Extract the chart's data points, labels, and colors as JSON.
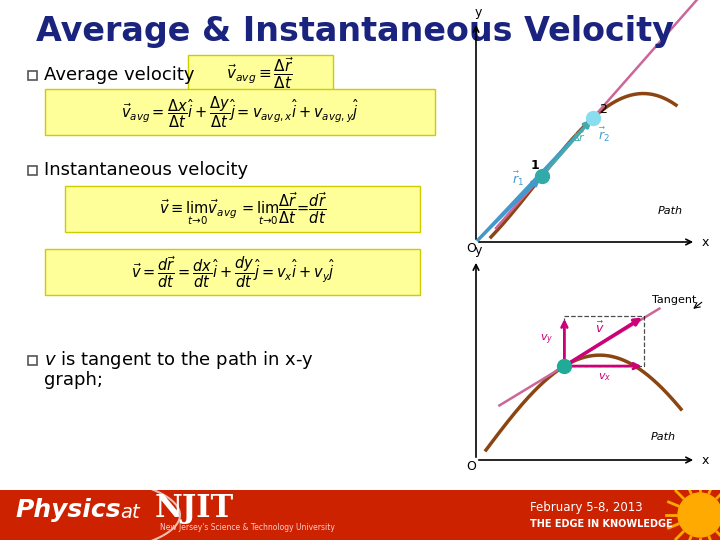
{
  "title": "Average & Instantaneous Velocity",
  "title_color": "#1a237e",
  "bg_color": "#ffffff",
  "footer_color": "#cc2200",
  "box_fill": "#ffff99",
  "box_edge": "#cccc00",
  "bullet1_label": "Average velocity",
  "bullet2_label": "Instantaneous velocity",
  "bullet3_line1": "v is tangent to the path in x-y",
  "bullet3_line2": "graph;",
  "footer_date": "February 5-8, 2013",
  "footer_tagline": "THE EDGE IN KNOWLEDGE",
  "footer_sub": "New Jersey's Science & Technology University",
  "diag_path_color": "#8B4513",
  "diag_blue": "#4499cc",
  "diag_teal": "#44aaaa",
  "diag_pink": "#cc0077",
  "diag_teal_dot": "#22aa99"
}
